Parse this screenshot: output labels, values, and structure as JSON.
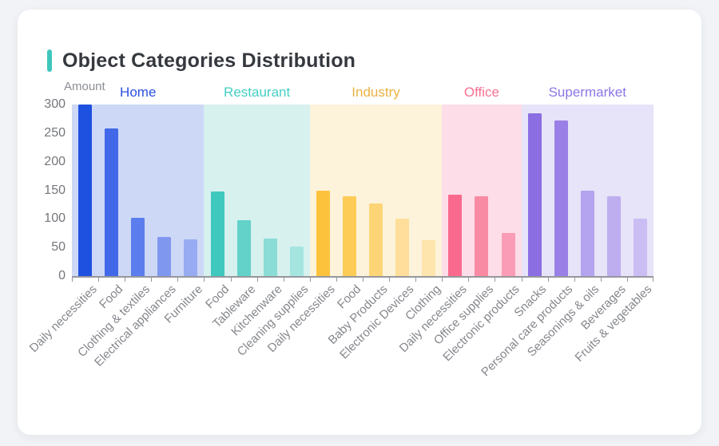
{
  "page": {
    "title": "Object Categories Distribution"
  },
  "chart_data": {
    "type": "bar",
    "title": "Object Categories Distribution",
    "ylabel": "Amount",
    "xlabel": "",
    "ylim": [
      0,
      300
    ],
    "yticks": [
      0,
      50,
      100,
      150,
      200,
      250,
      300
    ],
    "grid": false,
    "legend_position": "none",
    "group_headers_position": "above-plot",
    "axis_color": "#95979c",
    "groups": [
      {
        "name": "Home",
        "label_color": "#2b50e1",
        "background_color": "#cdd8f6",
        "bar_colors": [
          "#1f51e0",
          "#4168e8",
          "#5b7ded",
          "#8097ef",
          "#96abf2"
        ],
        "categories": [
          "Daily necessities",
          "Food",
          "Clothing & textiles",
          "Electrical appliances",
          "Furniture"
        ],
        "values": [
          300,
          258,
          102,
          69,
          64
        ]
      },
      {
        "name": "Restaurant",
        "label_color": "#45cfc4",
        "background_color": "#d6f1ee",
        "bar_colors": [
          "#3fc8be",
          "#63d2c9",
          "#8adcd6",
          "#a5e5e0"
        ],
        "categories": [
          "Food",
          "Tableware",
          "Kitchenware",
          "Cleaning supplies"
        ],
        "values": [
          148,
          97,
          65,
          51
        ]
      },
      {
        "name": "Industry",
        "label_color": "#e9b242",
        "background_color": "#fdf3da",
        "bar_colors": [
          "#fdc23c",
          "#fccc56",
          "#fdd577",
          "#fede9a",
          "#fee4ad"
        ],
        "categories": [
          "Daily necessities",
          "Food",
          "Baby Products",
          "Electronic Devices",
          "Clothing"
        ],
        "values": [
          150,
          139,
          127,
          100,
          63
        ]
      },
      {
        "name": "Office",
        "label_color": "#f9708f",
        "background_color": "#fddde7",
        "bar_colors": [
          "#f96a8e",
          "#f98aa4",
          "#fa9cb5"
        ],
        "categories": [
          "Daily necessities",
          "Office supplies",
          "Electronic products"
        ],
        "values": [
          142,
          139,
          75
        ]
      },
      {
        "name": "Supermarket",
        "label_color": "#8d75e6",
        "background_color": "#e7e3f8",
        "bar_colors": [
          "#8b6fe2",
          "#9a80e6",
          "#b4a3ee",
          "#beaef0",
          "#cabdf3"
        ],
        "categories": [
          "Snacks",
          "Personal care products",
          "Seasonings & oils",
          "Beverages",
          "Fruits & vegetables"
        ],
        "values": [
          285,
          272,
          149,
          140,
          101
        ]
      }
    ]
  }
}
